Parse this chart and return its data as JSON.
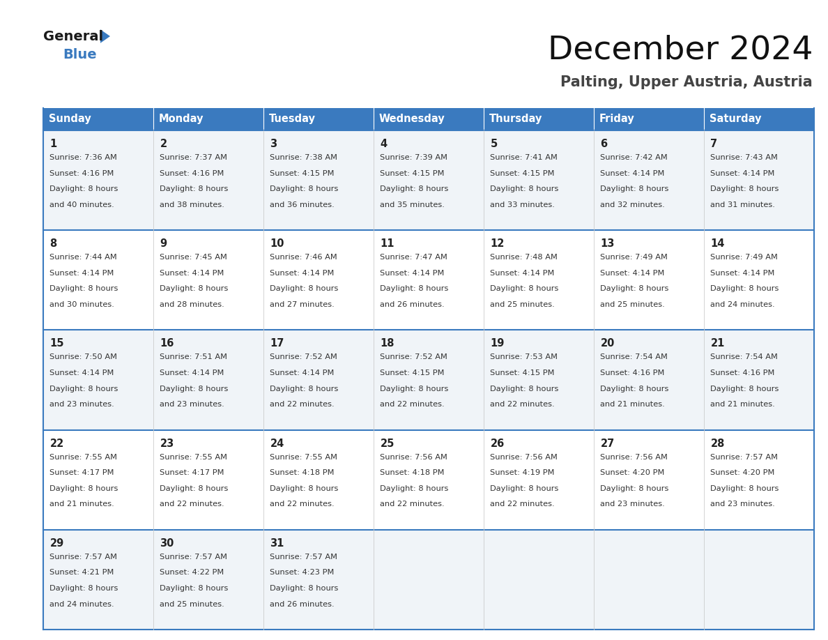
{
  "title": "December 2024",
  "subtitle": "Palting, Upper Austria, Austria",
  "header_color": "#3a7abf",
  "header_text_color": "#ffffff",
  "border_color": "#3a7abf",
  "row_bg_odd": "#f0f4f8",
  "row_bg_even": "#ffffff",
  "text_color_day": "#222222",
  "text_color_info": "#333333",
  "days_of_week": [
    "Sunday",
    "Monday",
    "Tuesday",
    "Wednesday",
    "Thursday",
    "Friday",
    "Saturday"
  ],
  "calendar": [
    [
      {
        "day": 1,
        "sunrise": "7:36 AM",
        "sunset": "4:16 PM",
        "daylight_h": "8 hours",
        "daylight_m": "40 minutes."
      },
      {
        "day": 2,
        "sunrise": "7:37 AM",
        "sunset": "4:16 PM",
        "daylight_h": "8 hours",
        "daylight_m": "38 minutes."
      },
      {
        "day": 3,
        "sunrise": "7:38 AM",
        "sunset": "4:15 PM",
        "daylight_h": "8 hours",
        "daylight_m": "36 minutes."
      },
      {
        "day": 4,
        "sunrise": "7:39 AM",
        "sunset": "4:15 PM",
        "daylight_h": "8 hours",
        "daylight_m": "35 minutes."
      },
      {
        "day": 5,
        "sunrise": "7:41 AM",
        "sunset": "4:15 PM",
        "daylight_h": "8 hours",
        "daylight_m": "33 minutes."
      },
      {
        "day": 6,
        "sunrise": "7:42 AM",
        "sunset": "4:14 PM",
        "daylight_h": "8 hours",
        "daylight_m": "32 minutes."
      },
      {
        "day": 7,
        "sunrise": "7:43 AM",
        "sunset": "4:14 PM",
        "daylight_h": "8 hours",
        "daylight_m": "31 minutes."
      }
    ],
    [
      {
        "day": 8,
        "sunrise": "7:44 AM",
        "sunset": "4:14 PM",
        "daylight_h": "8 hours",
        "daylight_m": "30 minutes."
      },
      {
        "day": 9,
        "sunrise": "7:45 AM",
        "sunset": "4:14 PM",
        "daylight_h": "8 hours",
        "daylight_m": "28 minutes."
      },
      {
        "day": 10,
        "sunrise": "7:46 AM",
        "sunset": "4:14 PM",
        "daylight_h": "8 hours",
        "daylight_m": "27 minutes."
      },
      {
        "day": 11,
        "sunrise": "7:47 AM",
        "sunset": "4:14 PM",
        "daylight_h": "8 hours",
        "daylight_m": "26 minutes."
      },
      {
        "day": 12,
        "sunrise": "7:48 AM",
        "sunset": "4:14 PM",
        "daylight_h": "8 hours",
        "daylight_m": "25 minutes."
      },
      {
        "day": 13,
        "sunrise": "7:49 AM",
        "sunset": "4:14 PM",
        "daylight_h": "8 hours",
        "daylight_m": "25 minutes."
      },
      {
        "day": 14,
        "sunrise": "7:49 AM",
        "sunset": "4:14 PM",
        "daylight_h": "8 hours",
        "daylight_m": "24 minutes."
      }
    ],
    [
      {
        "day": 15,
        "sunrise": "7:50 AM",
        "sunset": "4:14 PM",
        "daylight_h": "8 hours",
        "daylight_m": "23 minutes."
      },
      {
        "day": 16,
        "sunrise": "7:51 AM",
        "sunset": "4:14 PM",
        "daylight_h": "8 hours",
        "daylight_m": "23 minutes."
      },
      {
        "day": 17,
        "sunrise": "7:52 AM",
        "sunset": "4:14 PM",
        "daylight_h": "8 hours",
        "daylight_m": "22 minutes."
      },
      {
        "day": 18,
        "sunrise": "7:52 AM",
        "sunset": "4:15 PM",
        "daylight_h": "8 hours",
        "daylight_m": "22 minutes."
      },
      {
        "day": 19,
        "sunrise": "7:53 AM",
        "sunset": "4:15 PM",
        "daylight_h": "8 hours",
        "daylight_m": "22 minutes."
      },
      {
        "day": 20,
        "sunrise": "7:54 AM",
        "sunset": "4:16 PM",
        "daylight_h": "8 hours",
        "daylight_m": "21 minutes."
      },
      {
        "day": 21,
        "sunrise": "7:54 AM",
        "sunset": "4:16 PM",
        "daylight_h": "8 hours",
        "daylight_m": "21 minutes."
      }
    ],
    [
      {
        "day": 22,
        "sunrise": "7:55 AM",
        "sunset": "4:17 PM",
        "daylight_h": "8 hours",
        "daylight_m": "21 minutes."
      },
      {
        "day": 23,
        "sunrise": "7:55 AM",
        "sunset": "4:17 PM",
        "daylight_h": "8 hours",
        "daylight_m": "22 minutes."
      },
      {
        "day": 24,
        "sunrise": "7:55 AM",
        "sunset": "4:18 PM",
        "daylight_h": "8 hours",
        "daylight_m": "22 minutes."
      },
      {
        "day": 25,
        "sunrise": "7:56 AM",
        "sunset": "4:18 PM",
        "daylight_h": "8 hours",
        "daylight_m": "22 minutes."
      },
      {
        "day": 26,
        "sunrise": "7:56 AM",
        "sunset": "4:19 PM",
        "daylight_h": "8 hours",
        "daylight_m": "22 minutes."
      },
      {
        "day": 27,
        "sunrise": "7:56 AM",
        "sunset": "4:20 PM",
        "daylight_h": "8 hours",
        "daylight_m": "23 minutes."
      },
      {
        "day": 28,
        "sunrise": "7:57 AM",
        "sunset": "4:20 PM",
        "daylight_h": "8 hours",
        "daylight_m": "23 minutes."
      }
    ],
    [
      {
        "day": 29,
        "sunrise": "7:57 AM",
        "sunset": "4:21 PM",
        "daylight_h": "8 hours",
        "daylight_m": "24 minutes."
      },
      {
        "day": 30,
        "sunrise": "7:57 AM",
        "sunset": "4:22 PM",
        "daylight_h": "8 hours",
        "daylight_m": "25 minutes."
      },
      {
        "day": 31,
        "sunrise": "7:57 AM",
        "sunset": "4:23 PM",
        "daylight_h": "8 hours",
        "daylight_m": "26 minutes."
      },
      null,
      null,
      null,
      null
    ]
  ],
  "logo_text_general": "General",
  "logo_text_blue": "Blue",
  "logo_color_general": "#1a1a1a",
  "logo_color_blue": "#3a7abf",
  "logo_triangle_color": "#3a7abf"
}
